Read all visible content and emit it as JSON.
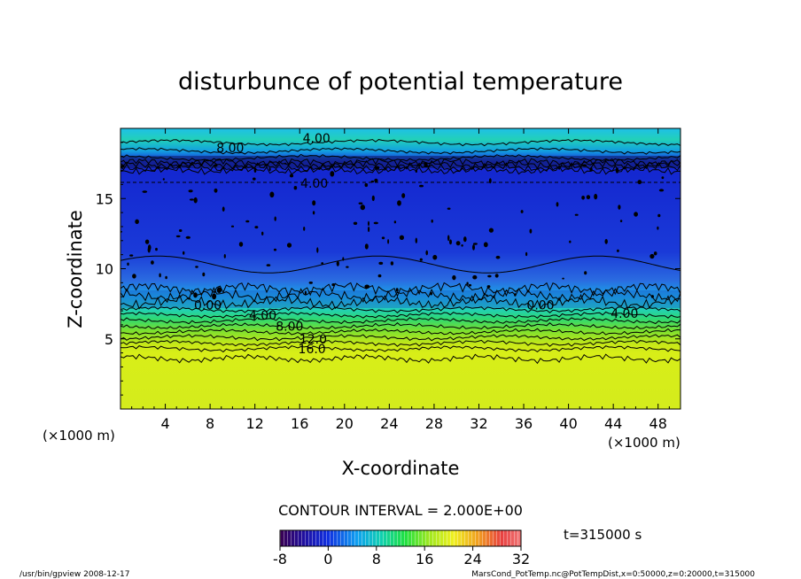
{
  "chart_data": {
    "type": "contour",
    "title": "disturbunce of potential temperature",
    "xlabel": "X-coordinate",
    "ylabel": "Z-coordinate",
    "x_unit_left": "(×1000 m)",
    "x_unit_right": "(×1000 m)",
    "xlim": [
      0,
      50
    ],
    "ylim": [
      0,
      20
    ],
    "x_ticks": [
      4,
      8,
      12,
      16,
      20,
      24,
      28,
      32,
      36,
      40,
      44,
      48
    ],
    "y_ticks": [
      5,
      10,
      15
    ],
    "contour_interval_text": "CONTOUR INTERVAL = 2.000E+00",
    "time_text": "t=315000 s",
    "colorbar": {
      "range": [
        -8,
        32
      ],
      "ticks": [
        "-8",
        "0",
        "8",
        "16",
        "24",
        "32"
      ]
    },
    "contour_labels": [
      {
        "text": "4.00",
        "x": 17.5,
        "z": 19.3
      },
      {
        "text": "8.00",
        "x": 9.8,
        "z": 18.6
      },
      {
        "text": "4.00",
        "x": 17.3,
        "z": 16.1
      },
      {
        "text": "0.00",
        "x": 7.8,
        "z": 7.4
      },
      {
        "text": "4.00",
        "x": 12.7,
        "z": 6.7
      },
      {
        "text": "8.00",
        "x": 15.1,
        "z": 5.9
      },
      {
        "text": "12.0",
        "x": 17.2,
        "z": 5.0
      },
      {
        "text": "16.0",
        "x": 17.1,
        "z": 4.3
      },
      {
        "text": "0.00",
        "x": 37.5,
        "z": 7.4
      },
      {
        "text": "4.00",
        "x": 45.0,
        "z": 6.8
      }
    ],
    "legend": "none",
    "grid": false
  },
  "footer": {
    "left": "/usr/bin/gpview   2008-12-17",
    "right": "MarsCond_PotTemp.nc@PotTempDist,x=0:50000,z=0:20000,t=315000"
  }
}
